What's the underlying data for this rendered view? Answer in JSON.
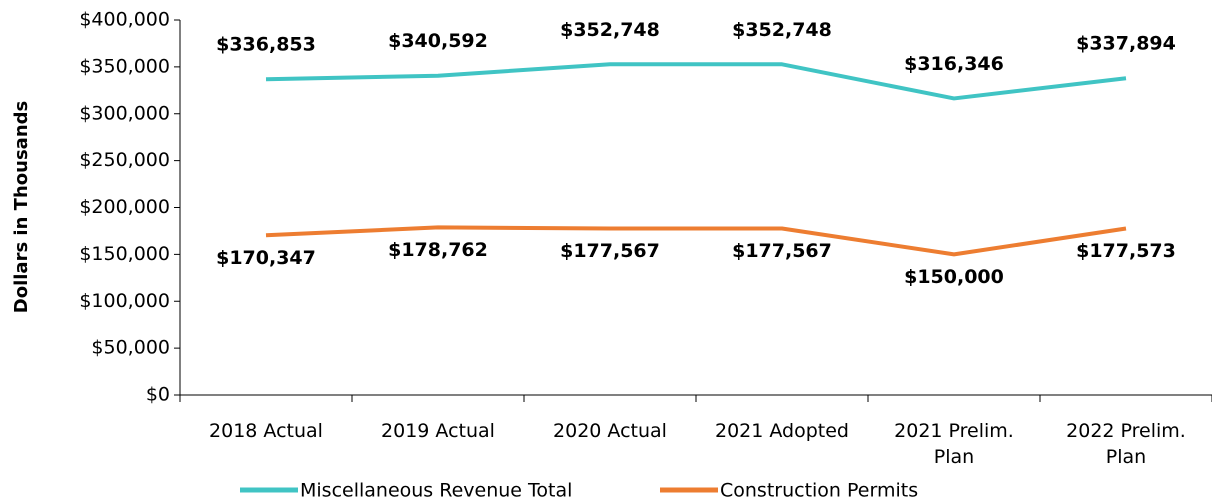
{
  "chart_data": {
    "type": "line",
    "y_label": "Dollars in Thousands",
    "categories": [
      "2018 Actual",
      "2019 Actual",
      "2020 Actual",
      "2021 Adopted",
      "2021 Prelim. Plan",
      "2022 Prelim. Plan"
    ],
    "series": [
      {
        "name": "Miscellaneous Revenue Total",
        "color": "#40c4c4",
        "values": [
          336853,
          340592,
          352748,
          352748,
          316346,
          337894
        ],
        "value_labels": [
          "$336,853",
          "$340,592",
          "$352,748",
          "$352,748",
          "$316,346",
          "$337,894"
        ]
      },
      {
        "name": "Construction Permits",
        "color": "#ed7d31",
        "values": [
          170347,
          178762,
          177567,
          177567,
          150000,
          177573
        ],
        "value_labels": [
          "$170,347",
          "$178,762",
          "$177,567",
          "$177,567",
          "$150,000",
          "$177,573"
        ]
      }
    ],
    "ylim": [
      0,
      400000
    ],
    "yticks": [
      {
        "value": 0,
        "label": "$0"
      },
      {
        "value": 50000,
        "label": "$50,000"
      },
      {
        "value": 100000,
        "label": "$100,000"
      },
      {
        "value": 150000,
        "label": "$150,000"
      },
      {
        "value": 200000,
        "label": "$200,000"
      },
      {
        "value": 250000,
        "label": "$250,000"
      },
      {
        "value": 300000,
        "label": "$300,000"
      },
      {
        "value": 350000,
        "label": "$350,000"
      },
      {
        "value": 400000,
        "label": "$400,000"
      }
    ],
    "legend": "bottom"
  }
}
